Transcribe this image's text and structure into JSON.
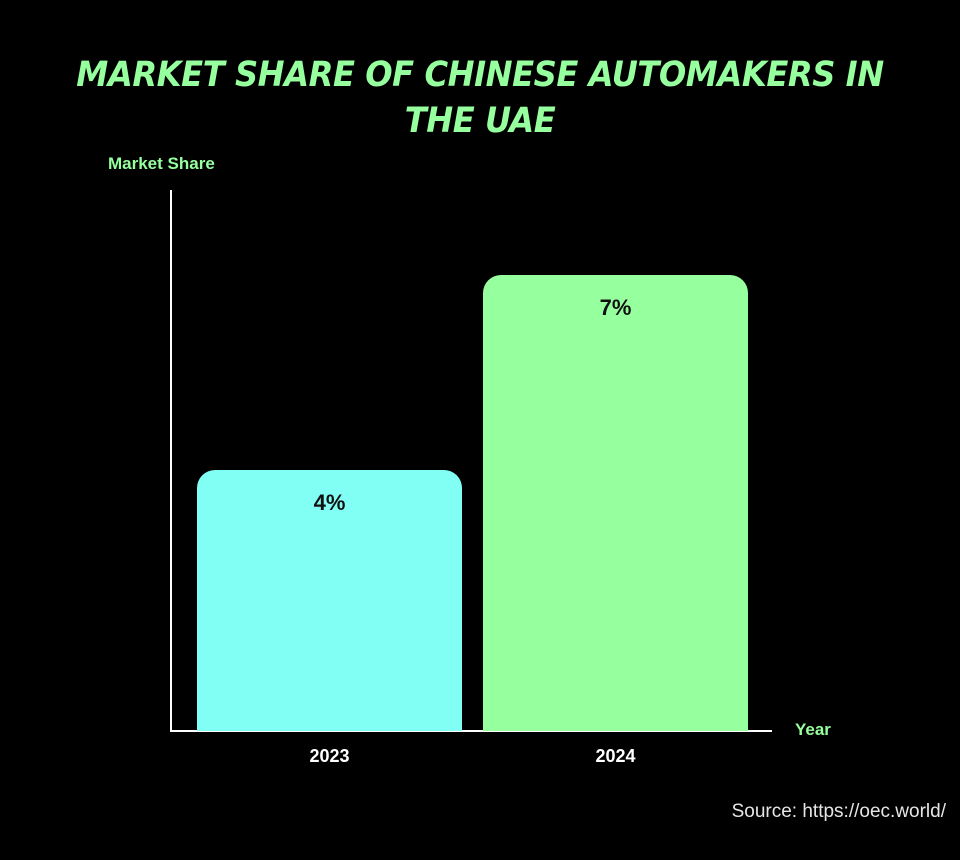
{
  "chart_data": {
    "type": "bar",
    "title": "Market Share of Chinese Automakers in the UAE",
    "xlabel": "Year",
    "ylabel": "Market Share",
    "categories": [
      "2023",
      "2024"
    ],
    "values": [
      4,
      7
    ],
    "value_labels": [
      "4%",
      "7%"
    ],
    "colors": [
      "#82fff5",
      "#96ff9e"
    ],
    "unit": "%",
    "ylim": [
      0,
      8.5
    ],
    "grid": false,
    "legend": false,
    "source": "Source: https://oec.world/"
  },
  "labels": {
    "title": "Market Share of Chinese Automakers in the UAE",
    "ylabel": "Market Share",
    "xlabel": "Year",
    "bar0": "4%",
    "bar1": "7%",
    "tick0": "2023",
    "tick1": "2024",
    "source": "Source: https://oec.world/"
  }
}
